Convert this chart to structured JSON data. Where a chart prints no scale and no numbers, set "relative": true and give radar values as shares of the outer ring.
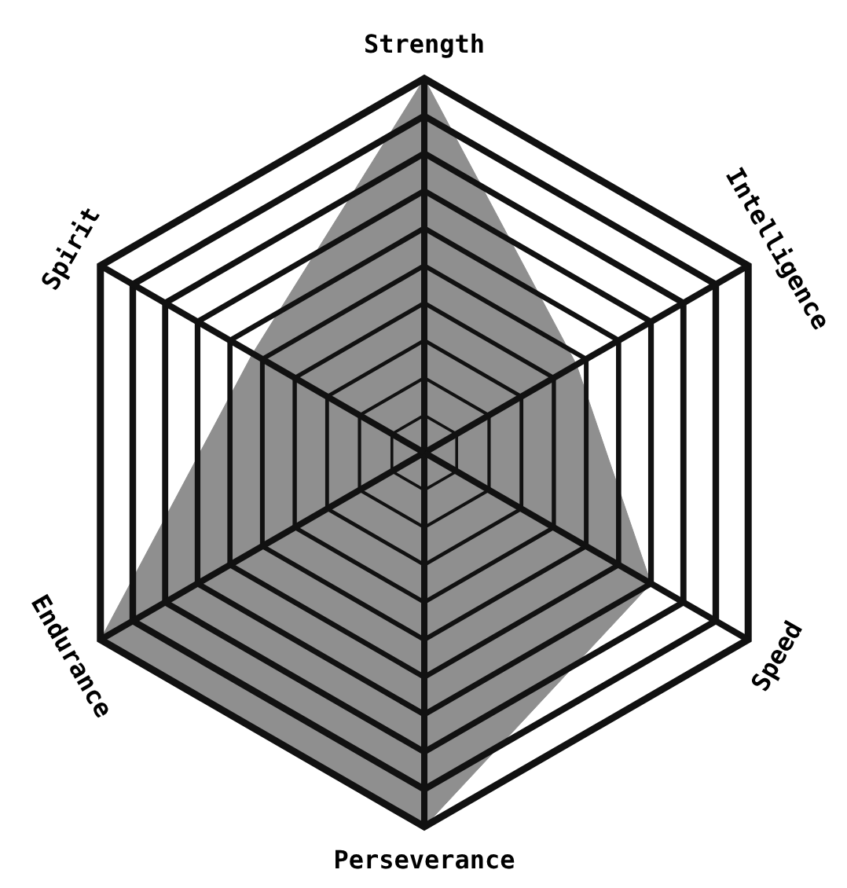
{
  "chart_data": {
    "type": "radar",
    "relative": true,
    "grid": true,
    "categories": [
      "Strength",
      "Intelligence",
      "Speed",
      "Perseverance",
      "Endurance",
      "Spirit"
    ],
    "series": [
      {
        "color": "#8f8f8f",
        "values": [
          1.0,
          0.47,
          0.7,
          1.0,
          1.0,
          0.53
        ]
      }
    ]
  }
}
